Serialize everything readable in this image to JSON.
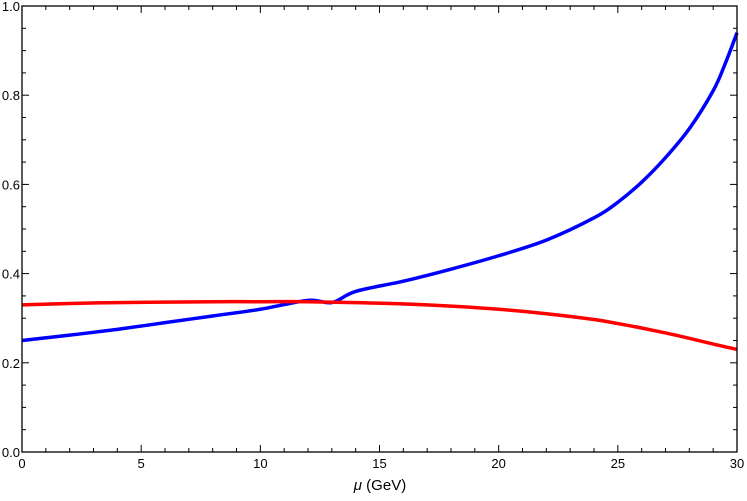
{
  "chart_data": {
    "type": "line",
    "title": "",
    "xlabel_symbol": "μ",
    "xlabel_unit": " (GeV)",
    "ylabel": "",
    "xlim": [
      0,
      30
    ],
    "ylim": [
      0,
      1.0
    ],
    "x_ticks": [
      0,
      5,
      10,
      15,
      20,
      25,
      30
    ],
    "x_tick_labels": [
      "0",
      "5",
      "10",
      "15",
      "20",
      "25",
      "30"
    ],
    "y_ticks": [
      0,
      0.2,
      0.4,
      0.6,
      0.8,
      1.0
    ],
    "y_tick_labels": [
      "0.0",
      "0.2",
      "0.4",
      "0.6",
      "0.8",
      "1.0"
    ],
    "grid": false,
    "legend": "none",
    "series": [
      {
        "color": "#0000ff",
        "x": [
          0,
          2,
          4,
          6,
          8,
          10,
          12,
          13,
          14,
          16,
          18,
          20,
          22,
          24,
          25,
          26,
          27,
          28,
          29,
          29.5,
          30
        ],
        "y": [
          0.25,
          0.262,
          0.275,
          0.29,
          0.305,
          0.32,
          0.34,
          0.335,
          0.36,
          0.383,
          0.41,
          0.44,
          0.475,
          0.525,
          0.56,
          0.605,
          0.66,
          0.725,
          0.81,
          0.87,
          0.94
        ]
      },
      {
        "color": "#ff0000",
        "x": [
          0,
          2,
          4,
          6,
          8,
          10,
          12,
          14,
          16,
          18,
          20,
          22,
          24,
          25,
          26,
          27,
          28,
          29,
          30
        ],
        "y": [
          0.33,
          0.333,
          0.335,
          0.336,
          0.337,
          0.337,
          0.337,
          0.335,
          0.332,
          0.327,
          0.32,
          0.31,
          0.297,
          0.288,
          0.278,
          0.267,
          0.255,
          0.242,
          0.23
        ]
      }
    ]
  }
}
